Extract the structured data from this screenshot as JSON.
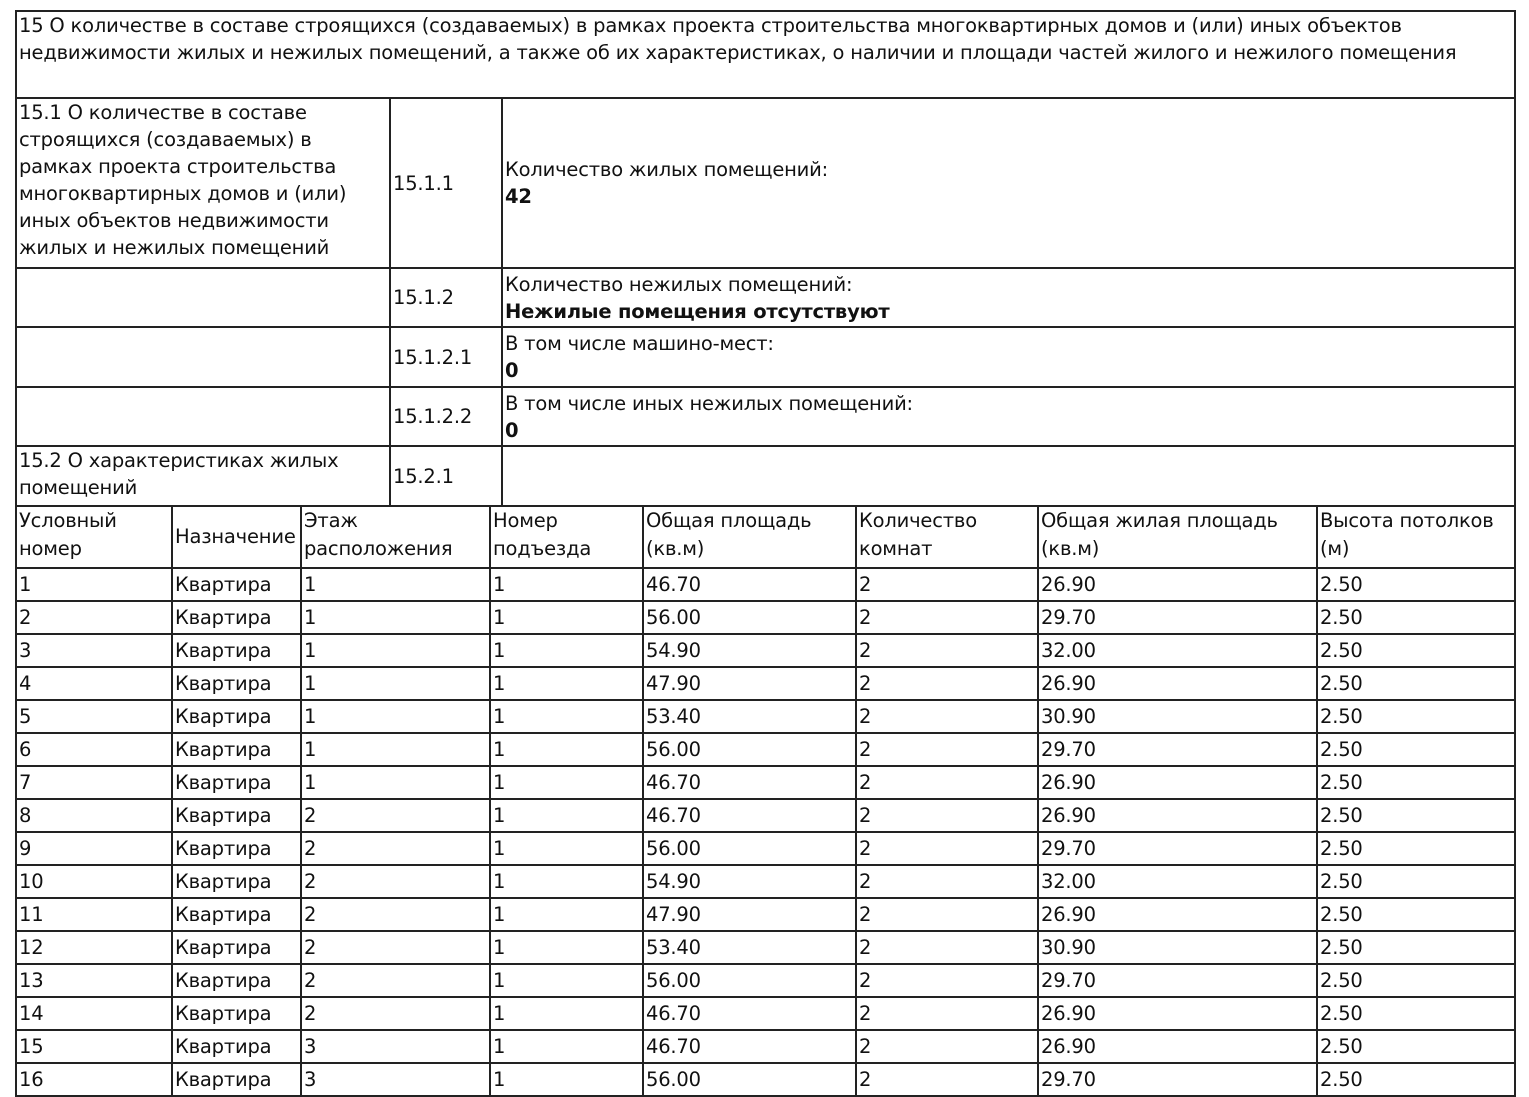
{
  "section_title": "15 О количестве в составе строящихся (создаваемых) в рамках проекта строительства многоквартирных домов и (или) иных объектов недвижимости жилых и нежилых помещений, а также об их характеристиках, о наличии и площади частей жилого и нежилого помещения",
  "rows": [
    {
      "label": "15.1 О количестве в составе строящихся (создаваемых) в рамках проекта строительства многоквартирных домов и (или) иных объектов недвижимости жилых и нежилых помещений",
      "code": "15.1.1",
      "field": "Количество жилых помещений:",
      "value": "42"
    },
    {
      "label": "",
      "code": "15.1.2",
      "field": "Количество нежилых помещений:",
      "value": "Нежилые помещения отсутствуют"
    },
    {
      "label": "",
      "code": "15.1.2.1",
      "field": "В том числе машино-мест:",
      "value": "0"
    },
    {
      "label": "",
      "code": "15.1.2.2",
      "field": "В том числе иных нежилых помещений:",
      "value": "0"
    },
    {
      "label": "15.2 О характеристиках жилых помещений",
      "code": "15.2.1",
      "field": "",
      "value": ""
    }
  ],
  "units_table": {
    "headers": [
      "Условный номер",
      "Назначение",
      "Этаж расположения",
      "Номер подъезда",
      "Общая площадь (кв.м)",
      "Количество комнат",
      "Общая жилая площадь (кв.м)",
      "Высота потолков (м)"
    ],
    "rows": [
      [
        "1",
        "Квартира",
        "1",
        "1",
        "46.70",
        "2",
        "26.90",
        "2.50"
      ],
      [
        "2",
        "Квартира",
        "1",
        "1",
        "56.00",
        "2",
        "29.70",
        "2.50"
      ],
      [
        "3",
        "Квартира",
        "1",
        "1",
        "54.90",
        "2",
        "32.00",
        "2.50"
      ],
      [
        "4",
        "Квартира",
        "1",
        "1",
        "47.90",
        "2",
        "26.90",
        "2.50"
      ],
      [
        "5",
        "Квартира",
        "1",
        "1",
        "53.40",
        "2",
        "30.90",
        "2.50"
      ],
      [
        "6",
        "Квартира",
        "1",
        "1",
        "56.00",
        "2",
        "29.70",
        "2.50"
      ],
      [
        "7",
        "Квартира",
        "1",
        "1",
        "46.70",
        "2",
        "26.90",
        "2.50"
      ],
      [
        "8",
        "Квартира",
        "2",
        "1",
        "46.70",
        "2",
        "26.90",
        "2.50"
      ],
      [
        "9",
        "Квартира",
        "2",
        "1",
        "56.00",
        "2",
        "29.70",
        "2.50"
      ],
      [
        "10",
        "Квартира",
        "2",
        "1",
        "54.90",
        "2",
        "32.00",
        "2.50"
      ],
      [
        "11",
        "Квартира",
        "2",
        "1",
        "47.90",
        "2",
        "26.90",
        "2.50"
      ],
      [
        "12",
        "Квартира",
        "2",
        "1",
        "53.40",
        "2",
        "30.90",
        "2.50"
      ],
      [
        "13",
        "Квартира",
        "2",
        "1",
        "56.00",
        "2",
        "29.70",
        "2.50"
      ],
      [
        "14",
        "Квартира",
        "2",
        "1",
        "46.70",
        "2",
        "26.90",
        "2.50"
      ],
      [
        "15",
        "Квартира",
        "3",
        "1",
        "46.70",
        "2",
        "26.90",
        "2.50"
      ],
      [
        "16",
        "Квартира",
        "3",
        "1",
        "56.00",
        "2",
        "29.70",
        "2.50"
      ]
    ]
  }
}
